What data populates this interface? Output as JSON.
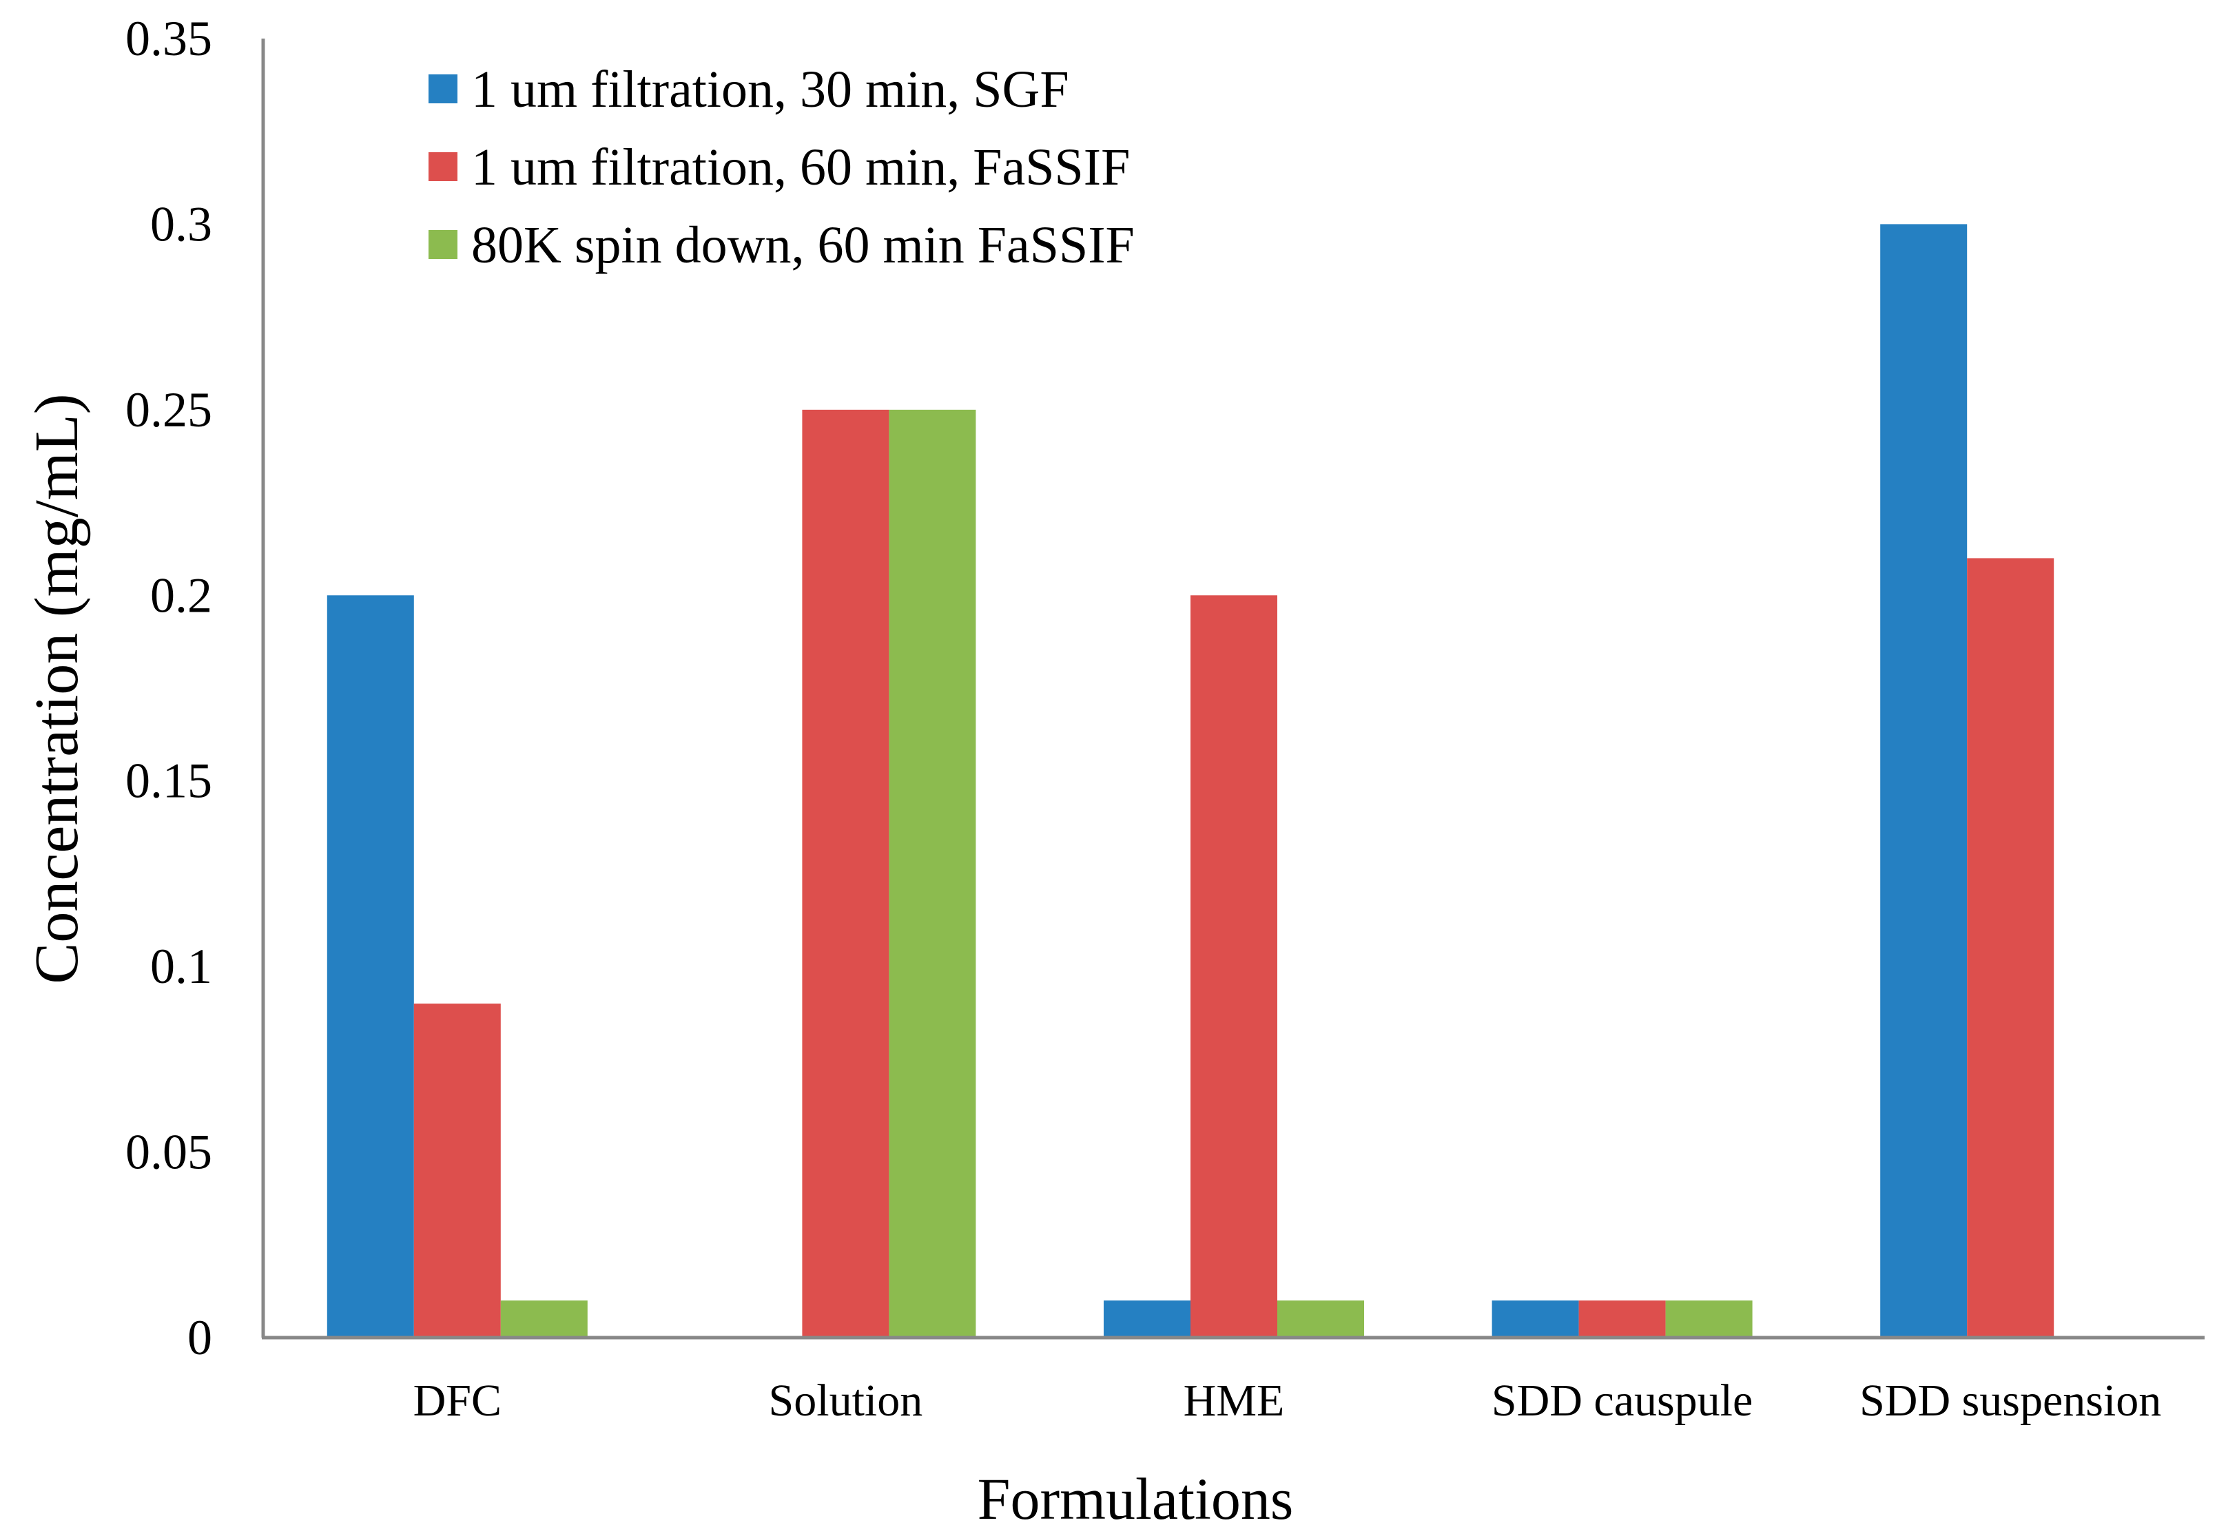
{
  "chart_data": {
    "type": "bar",
    "title": "",
    "xlabel": "Formulations",
    "ylabel": "Concentration (mg/mL)",
    "ylim": [
      0,
      0.35
    ],
    "yticks": [
      0,
      0.05,
      0.1,
      0.15,
      0.2,
      0.25,
      0.3,
      0.35
    ],
    "ytick_labels": [
      "0",
      "0.05",
      "0.1",
      "0.15",
      "0.2",
      "0.25",
      "0.3",
      "0.35"
    ],
    "grid": false,
    "legend_position": "top-left",
    "categories": [
      "DFC",
      "Solution",
      "HME",
      "SDD causpule",
      "SDD suspension"
    ],
    "series": [
      {
        "name": "1 um filtration, 30 min, SGF",
        "color": "#2580C2",
        "values": [
          0.2,
          0,
          0.01,
          0.01,
          0.3
        ]
      },
      {
        "name": "1 um filtration, 60 min, FaSSIF",
        "color": "#DD4F4D",
        "values": [
          0.09,
          0.25,
          0.2,
          0.01,
          0.21
        ]
      },
      {
        "name": "80K spin down, 60 min FaSSIF",
        "color": "#8CBB4F",
        "values": [
          0.01,
          0.25,
          0.01,
          0.01,
          0
        ]
      }
    ]
  }
}
